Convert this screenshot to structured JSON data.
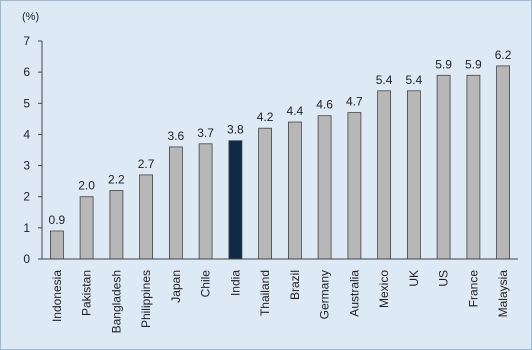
{
  "chart_data": {
    "type": "bar",
    "ylabel": "(%)",
    "ylim": [
      0,
      7
    ],
    "yticks": [
      0,
      1,
      2,
      3,
      4,
      5,
      6,
      7
    ],
    "categories": [
      "Indonesia",
      "Pakistan",
      "Bangladesh",
      "Philippines",
      "Japan",
      "Chile",
      "India",
      "Thailand",
      "Brazil",
      "Germany",
      "Australia",
      "Mexico",
      "UK",
      "US",
      "France",
      "Malaysia"
    ],
    "values": [
      0.9,
      2.0,
      2.2,
      2.7,
      3.6,
      3.7,
      3.8,
      4.2,
      4.4,
      4.6,
      4.7,
      5.4,
      5.4,
      5.9,
      5.9,
      6.2
    ],
    "value_labels": [
      "0.9",
      "2.0",
      "2.2",
      "2.7",
      "3.6",
      "3.7",
      "3.8",
      "4.2",
      "4.4",
      "4.6",
      "4.7",
      "5.4",
      "5.4",
      "5.9",
      "5.9",
      "6.2"
    ],
    "highlight": "India",
    "colors": {
      "bar": "#b7b7b7",
      "highlight": "#0e2a47",
      "bar_stroke": "#444444",
      "axis": "#444444"
    },
    "grid": false,
    "legend": "none"
  }
}
